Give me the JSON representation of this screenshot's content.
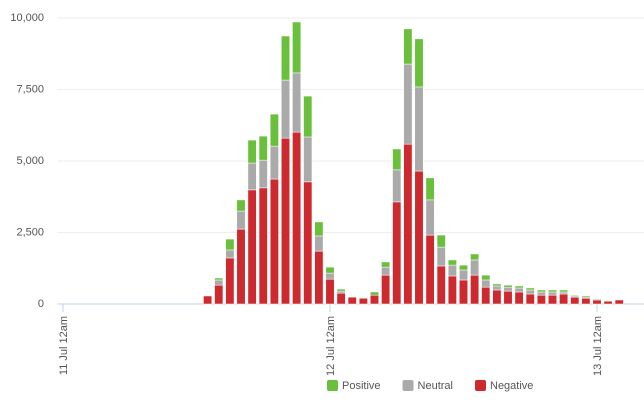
{
  "chart_data": {
    "type": "stacked-bar",
    "categories": [
      "11 Jul 12am",
      null,
      null,
      null,
      null,
      null,
      null,
      null,
      null,
      null,
      null,
      null,
      null,
      null,
      null,
      null,
      null,
      null,
      null,
      null,
      null,
      null,
      null,
      null,
      "12 Jul 12am",
      null,
      null,
      null,
      null,
      null,
      null,
      null,
      null,
      null,
      null,
      null,
      null,
      null,
      null,
      null,
      null,
      null,
      null,
      null,
      null,
      null,
      null,
      null,
      "13 Jul 12am",
      null,
      null,
      null
    ],
    "series": [
      {
        "name": "Positive",
        "color": "#6abf3c",
        "values": [
          null,
          null,
          null,
          null,
          null,
          null,
          null,
          null,
          null,
          null,
          null,
          null,
          null,
          0,
          70,
          380,
          390,
          800,
          840,
          1120,
          1540,
          1780,
          1430,
          490,
          210,
          70,
          0,
          0,
          110,
          180,
          730,
          1230,
          1680,
          770,
          420,
          180,
          170,
          210,
          170,
          70,
          70,
          70,
          70,
          70,
          70,
          70,
          30,
          40,
          30,
          10,
          0,
          null
        ]
      },
      {
        "name": "Neutral",
        "color": "#aaaaaa",
        "values": [
          null,
          null,
          null,
          null,
          null,
          null,
          null,
          null,
          null,
          null,
          null,
          null,
          null,
          0,
          180,
          280,
          630,
          940,
          970,
          1150,
          2030,
          2070,
          1570,
          530,
          210,
          70,
          0,
          0,
          0,
          280,
          1120,
          2800,
          2940,
          1230,
          660,
          380,
          350,
          530,
          250,
          140,
          140,
          140,
          140,
          110,
          110,
          70,
          40,
          40,
          0,
          20,
          0,
          null
        ]
      },
      {
        "name": "Negative",
        "color": "#cc2a2f",
        "values": [
          null,
          null,
          null,
          null,
          null,
          null,
          null,
          null,
          null,
          null,
          null,
          null,
          null,
          280,
          660,
          1610,
          2620,
          3990,
          4060,
          4370,
          5800,
          6010,
          4270,
          1850,
          870,
          380,
          240,
          200,
          310,
          1010,
          3570,
          5590,
          4650,
          2410,
          1330,
          980,
          840,
          1010,
          590,
          490,
          450,
          420,
          350,
          310,
          310,
          350,
          240,
          200,
          140,
          100,
          140,
          null
        ]
      }
    ],
    "ylim": [
      0,
      10000
    ],
    "yticks": [
      0,
      {
        "value": 2500,
        "label": "2,500"
      },
      {
        "value": 5000,
        "label": "5,000"
      },
      {
        "value": 7500,
        "label": "7,500"
      },
      {
        "value": 10000,
        "label": "10,000"
      }
    ],
    "grid": true,
    "stacked": true,
    "legend": "bottom"
  }
}
